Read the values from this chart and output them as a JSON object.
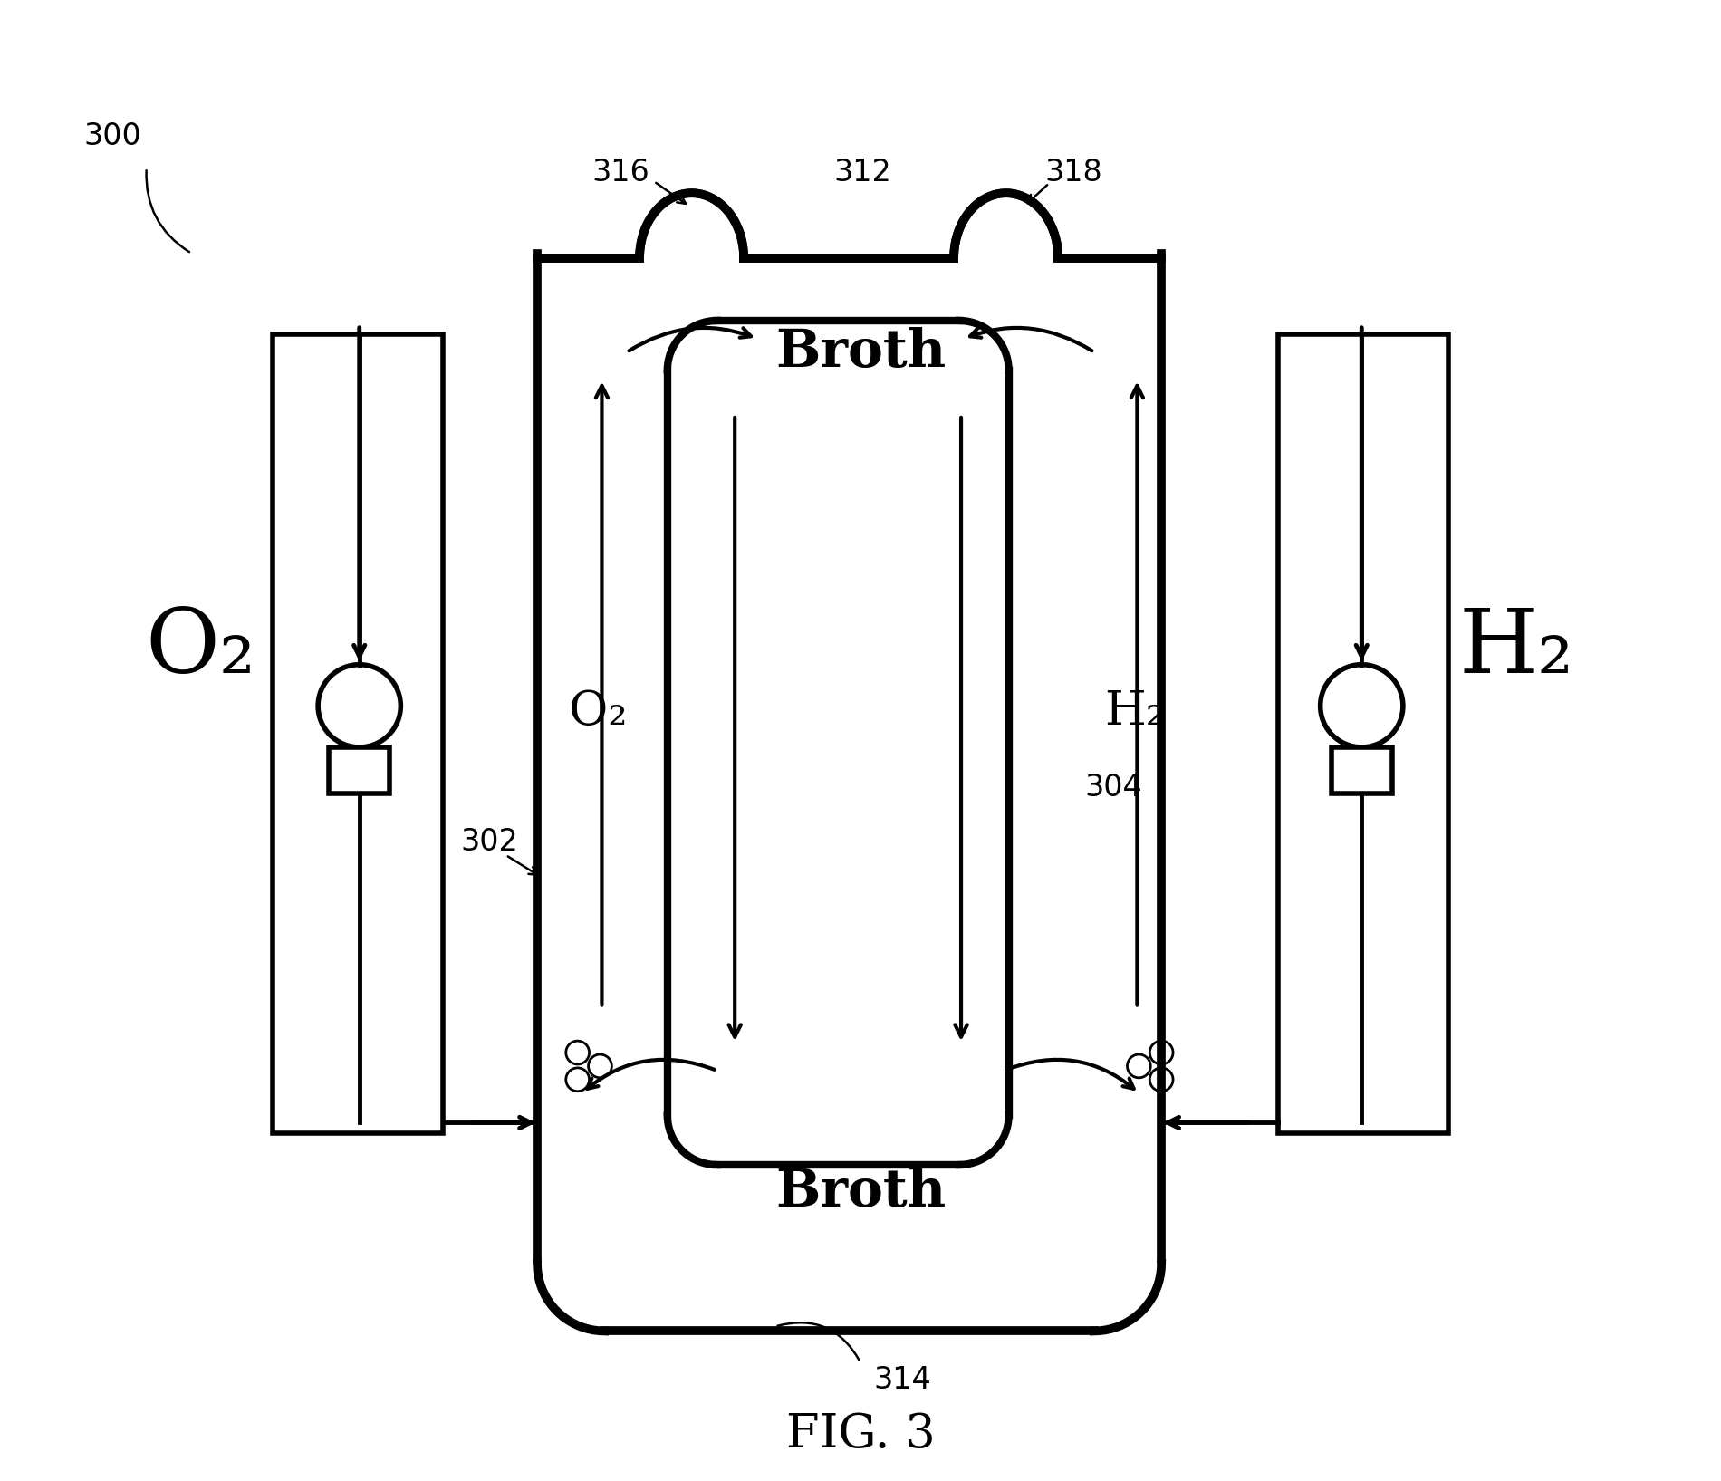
{
  "bg_color": "#ffffff",
  "line_color": "#000000",
  "fig_label": "FIG. 3",
  "ref_300": "300",
  "ref_302": "302",
  "ref_304": "304",
  "ref_312": "312",
  "ref_314": "314",
  "ref_316": "316",
  "ref_318": "318",
  "label_O2_big": "O₂",
  "label_H2_big": "H₂",
  "label_O2_inner": "O₂",
  "label_H2_inner": "H₂",
  "label_broth_top": "Broth",
  "label_broth_bottom": "Broth",
  "font_size_big": 72,
  "font_size_label": 38,
  "font_size_ref": 24,
  "font_size_fig": 38,
  "font_size_broth": 42
}
